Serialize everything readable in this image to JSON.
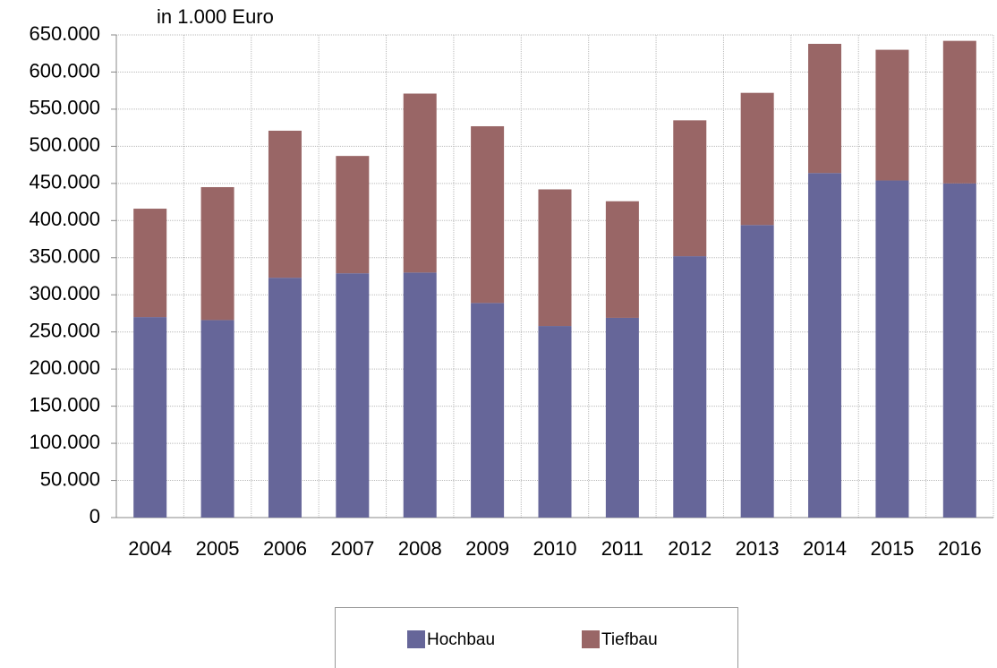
{
  "chart_data": {
    "type": "stacked_bar",
    "y_unit_label": "in 1.000 Euro",
    "categories": [
      "2004",
      "2005",
      "2006",
      "2007",
      "2008",
      "2009",
      "2010",
      "2011",
      "2012",
      "2013",
      "2014",
      "2015",
      "2016"
    ],
    "series": [
      {
        "name": "Hochbau",
        "color": "#666699",
        "values": [
          270000,
          266000,
          323000,
          329000,
          330000,
          289000,
          258000,
          269000,
          352000,
          394000,
          464000,
          454000,
          450000
        ]
      },
      {
        "name": "Tiefbau",
        "color": "#996666",
        "values": [
          146000,
          179000,
          198000,
          158000,
          241000,
          238000,
          184000,
          157000,
          183000,
          178000,
          174000,
          176000,
          192000
        ]
      }
    ],
    "ylim": [
      0,
      650000
    ],
    "yticks": [
      0,
      {
        "value": 50000,
        "label": "50.000"
      },
      {
        "value": 100000,
        "label": "100.000"
      },
      {
        "value": 150000,
        "label": "150.000"
      },
      {
        "value": 200000,
        "label": "200.000"
      },
      {
        "value": 250000,
        "label": "250.000"
      },
      {
        "value": 300000,
        "label": "300.000"
      },
      {
        "value": 350000,
        "label": "350.000"
      },
      {
        "value": 400000,
        "label": "400.000"
      },
      {
        "value": 450000,
        "label": "450.000"
      },
      {
        "value": 500000,
        "label": "500.000"
      },
      {
        "value": 550000,
        "label": "550.000"
      },
      {
        "value": 600000,
        "label": "600.000"
      },
      {
        "value": 650000,
        "label": "650.000"
      }
    ],
    "grid": true
  }
}
